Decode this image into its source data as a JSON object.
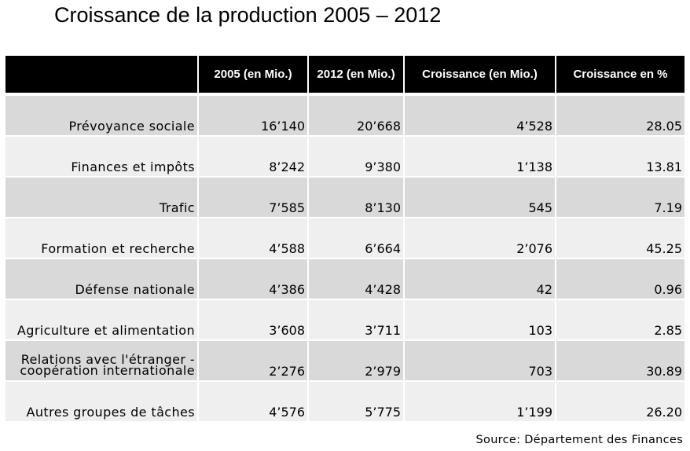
{
  "chart_data": {
    "type": "table",
    "title": "Croissance de la production 2005 – 2012",
    "columns": [
      "",
      "2005  (en Mio.)",
      "2012 (en Mio.)",
      "Croissance  (en Mio.)",
      "Croissance en %"
    ],
    "rows": [
      {
        "category": "Prévoyance sociale",
        "y2005": "16’140",
        "y2012": "20’668",
        "growth": "4’528",
        "growth_pct": "28.05"
      },
      {
        "category": "Finances et impôts",
        "y2005": "8’242",
        "y2012": "9’380",
        "growth": "1’138",
        "growth_pct": "13.81"
      },
      {
        "category": "Trafic",
        "y2005": "7’585",
        "y2012": "8’130",
        "growth": "545",
        "growth_pct": "7.19"
      },
      {
        "category": "Formation et recherche",
        "y2005": "4’588",
        "y2012": "6’664",
        "growth": "2’076",
        "growth_pct": "45.25"
      },
      {
        "category": "Défense nationale",
        "y2005": "4’386",
        "y2012": "4’428",
        "growth": "42",
        "growth_pct": "0.96"
      },
      {
        "category": "Agriculture et alimentation",
        "y2005": "3’608",
        "y2012": "3’711",
        "growth": "103",
        "growth_pct": "2.85"
      },
      {
        "category": "Relations avec l'étranger - coopération internationale",
        "category_lines": [
          "Relations avec l'étranger -",
          "coopération internationale"
        ],
        "y2005": "2’276",
        "y2012": "2’979",
        "growth": "703",
        "growth_pct": "30.89"
      },
      {
        "category": "Autres groupes de tâches",
        "y2005": "4’576",
        "y2012": "5’775",
        "growth": "1’199",
        "growth_pct": "26.20"
      }
    ],
    "source": "Source: Département des Finances"
  },
  "colors": {
    "header_bg": "#000000",
    "header_text": "#ffffff",
    "row_dark": "#d9d9d9",
    "row_light": "#efefef"
  }
}
